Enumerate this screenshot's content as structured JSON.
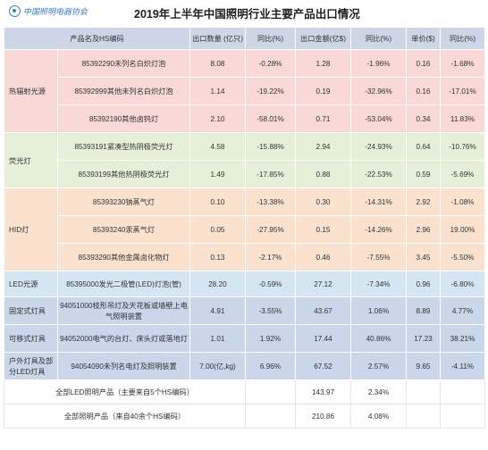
{
  "title": "2019年上半年中国照明行业主要产品出口情况",
  "logo_text": "中国照明电器协会",
  "headers": [
    "产品名及HS编码",
    "出口数量 (亿只)",
    "同比(%)",
    "出口金额(亿$)",
    "同比(%)",
    "单价($)",
    "同比(%)"
  ],
  "categories": {
    "ht": "热辐射光源",
    "fl": "荧光灯",
    "hid": "HID灯",
    "led": "LED光源",
    "fix": "固定式灯具",
    "mov": "可移式灯具",
    "out": "户外灯具及部分LED灯具"
  },
  "rows": [
    {
      "product": "85392290未列名白炽灯泡",
      "qty": "8.08",
      "qty_yoy": "-0.28%",
      "amount": "1.28",
      "amount_yoy": "-1.96%",
      "price": "0.16",
      "price_yoy": "-1.68%"
    },
    {
      "product": "85392999其他未列名白炽灯泡",
      "qty": "1.14",
      "qty_yoy": "-19.22%",
      "amount": "0.19",
      "amount_yoy": "-32.96%",
      "price": "0.16",
      "price_yoy": "-17.01%"
    },
    {
      "product": "85392190其他卤钨灯",
      "qty": "2.10",
      "qty_yoy": "-58.01%",
      "amount": "0.71",
      "amount_yoy": "-53.04%",
      "price": "0.34",
      "price_yoy": "11.83%"
    },
    {
      "product": "85393191紧凑型热阴极荧光灯",
      "qty": "4.58",
      "qty_yoy": "-15.88%",
      "amount": "2.94",
      "amount_yoy": "-24.93%",
      "price": "0.64",
      "price_yoy": "-10.76%"
    },
    {
      "product": "85393199其他热阴极荧光灯",
      "qty": "1.49",
      "qty_yoy": "-17.85%",
      "amount": "0.88",
      "amount_yoy": "-22.53%",
      "price": "0.59",
      "price_yoy": "-5.69%"
    },
    {
      "product": "85393230钠蒸气灯",
      "qty": "0.10",
      "qty_yoy": "-13.38%",
      "amount": "0.30",
      "amount_yoy": "-14.31%",
      "price": "2.92",
      "price_yoy": "-1.08%"
    },
    {
      "product": "85393240汞蒸气灯",
      "qty": "0.05",
      "qty_yoy": "-27.95%",
      "amount": "0.15",
      "amount_yoy": "-14.26%",
      "price": "2.96",
      "price_yoy": "19.00%"
    },
    {
      "product": "85393290其他金属卤化物灯",
      "qty": "0.13",
      "qty_yoy": "-2.17%",
      "amount": "0.46",
      "amount_yoy": "-7.55%",
      "price": "3.45",
      "price_yoy": "-5.50%"
    },
    {
      "product": "85395000发光二极管(LED)灯泡(管)",
      "qty": "28.20",
      "qty_yoy": "-0.59%",
      "amount": "27.12",
      "amount_yoy": "-7.34%",
      "price": "0.96",
      "price_yoy": "-6.80%"
    },
    {
      "product": "94051000枝形吊灯及天花板或墙壁上电气照明装置",
      "qty": "4.91",
      "qty_yoy": "-3.55%",
      "amount": "43.67",
      "amount_yoy": "1.06%",
      "price": "8.89",
      "price_yoy": "4.77%"
    },
    {
      "product": "94052000电气的台灯、床头灯或落地灯",
      "qty": "1.01",
      "qty_yoy": "1.92%",
      "amount": "17.44",
      "amount_yoy": "40.86%",
      "price": "17.23",
      "price_yoy": "38.21%"
    },
    {
      "product": "94054090未列名电灯及照明装置",
      "qty": "7.00(亿,kg)",
      "qty_yoy": "6.96%",
      "amount": "67.52",
      "amount_yoy": "2.57%",
      "price": "9.65",
      "price_yoy": "-4.11%"
    }
  ],
  "summary": [
    {
      "label": "全部LED照明产品（主要来自5个HS编码）",
      "amount": "143.97",
      "amount_yoy": "2.34%"
    },
    {
      "label": "全部照明产品（来自40余个HS编码）",
      "amount": "210.86",
      "amount_yoy": "4.08%"
    }
  ]
}
